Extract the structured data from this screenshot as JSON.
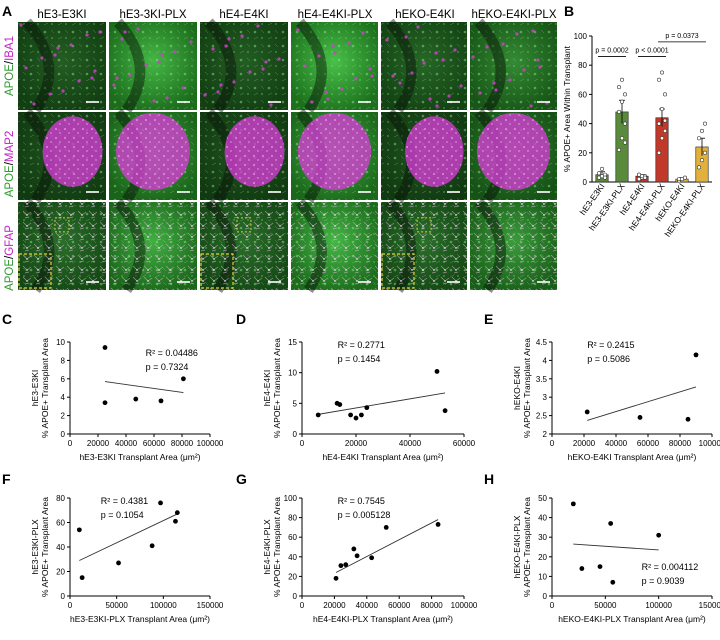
{
  "panel_letters": {
    "A": "A",
    "B": "B",
    "C": "C",
    "D": "D",
    "E": "E",
    "F": "F",
    "G": "G",
    "H": "H"
  },
  "micrograph": {
    "columns": [
      "hE3-E3KI",
      "hE3-3KI-PLX",
      "hE4-E4KI",
      "hE4-E4KI-PLX",
      "hEKO-E4KI",
      "hEKO-E4KI-PLX"
    ],
    "rows": [
      {
        "green": "APOE",
        "sep": "/",
        "magenta": "IBA1"
      },
      {
        "green": "APOE",
        "sep": "/",
        "magenta": "MAP2"
      },
      {
        "green": "APOE",
        "sep": "/",
        "magenta": "GFAP"
      }
    ],
    "colors": {
      "green": "#3cc03c",
      "magenta": "#d23cd2",
      "dark": "#0c1f0c",
      "inset": "#e6d23a",
      "scalebar": "#ffffff"
    }
  },
  "chart_data": [
    {
      "id": "B",
      "type": "bar",
      "categories": [
        "hE3-E3KI",
        "hE3-E3KI-PLX",
        "hE4-E4KI",
        "hE4-E4KI-PLX",
        "hEKO-E4KI",
        "hEKO-E4KI-PLX"
      ],
      "values": [
        5,
        48,
        4,
        44,
        2,
        24
      ],
      "errors": [
        2,
        8,
        1,
        6,
        1,
        6
      ],
      "colors": [
        "#5a8a3c",
        "#5a8a3c",
        "#c0392b",
        "#c0392b",
        "#e2b13c",
        "#e2b13c"
      ],
      "points": [
        [
          3,
          4,
          5,
          6,
          9,
          3
        ],
        [
          22,
          30,
          40,
          48,
          55,
          60,
          65,
          70,
          27
        ],
        [
          2,
          3,
          4,
          5,
          4,
          3,
          5
        ],
        [
          20,
          30,
          35,
          40,
          50,
          60,
          70,
          75,
          42
        ],
        [
          1,
          2,
          3,
          2
        ],
        [
          10,
          15,
          20,
          30,
          35,
          40
        ]
      ],
      "ylabel": "% APOE+ Area Within Transplant",
      "ylim": [
        0,
        100
      ],
      "yticks": [
        0,
        20,
        40,
        60,
        80,
        100
      ],
      "annotations": [
        {
          "text": "p = 0.0002",
          "from": 0,
          "to": 1,
          "y": 86
        },
        {
          "text": "p < 0.0001",
          "from": 2,
          "to": 3,
          "y": 86
        },
        {
          "text": "p = 0.0373",
          "from": 3,
          "to": 5,
          "y": 96
        }
      ]
    },
    {
      "id": "C",
      "type": "scatter",
      "points": [
        [
          25000,
          9.4
        ],
        [
          25000,
          3.4
        ],
        [
          47000,
          3.8
        ],
        [
          65000,
          3.6
        ],
        [
          81000,
          6.0
        ]
      ],
      "fit": [
        [
          25000,
          5.7
        ],
        [
          81000,
          4.5
        ]
      ],
      "xlim": [
        0,
        100000
      ],
      "xticks": [
        0,
        20000,
        40000,
        60000,
        80000,
        100000
      ],
      "ylim": [
        0,
        10
      ],
      "yticks": [
        0,
        2,
        4,
        6,
        8,
        10
      ],
      "ylabel1": "hE3-E3KI",
      "ylabel2": "% APOE+ Transplant Area",
      "xlabel": "hE3-E3KI Transplant Area (μm²)",
      "r2": "R² = 0.04486",
      "p": "p = 0.7324",
      "stats_pos": "top-right"
    },
    {
      "id": "D",
      "type": "scatter",
      "points": [
        [
          6000,
          3.1
        ],
        [
          13000,
          5.0
        ],
        [
          14000,
          4.8
        ],
        [
          18000,
          3.1
        ],
        [
          20000,
          2.6
        ],
        [
          22000,
          3.1
        ],
        [
          24000,
          4.3
        ],
        [
          50000,
          10.2
        ],
        [
          53000,
          3.8
        ]
      ],
      "fit": [
        [
          6000,
          3.2
        ],
        [
          53000,
          6.7
        ]
      ],
      "xlim": [
        0,
        60000
      ],
      "xticks": [
        0,
        20000,
        40000,
        60000
      ],
      "ylim": [
        0,
        15
      ],
      "yticks": [
        0,
        5,
        10,
        15
      ],
      "ylabel1": "hE4-E4KI",
      "ylabel2": "% APOE+ Transplant Area",
      "xlabel": "hE4-E4KI Transplant Area (μm²)",
      "r2": "R² = 0.2771",
      "p": "p = 0.1454",
      "stats_pos": "top-left"
    },
    {
      "id": "E",
      "type": "scatter",
      "points": [
        [
          22000,
          2.6
        ],
        [
          55000,
          2.45
        ],
        [
          85000,
          2.4
        ],
        [
          90000,
          4.15
        ]
      ],
      "fit": [
        [
          22000,
          2.37
        ],
        [
          90000,
          3.28
        ]
      ],
      "xlim": [
        0,
        100000
      ],
      "xticks": [
        0,
        20000,
        40000,
        60000,
        80000,
        100000
      ],
      "ylim": [
        2.0,
        4.5
      ],
      "yticks": [
        2.0,
        2.5,
        3.0,
        3.5,
        4.0,
        4.5
      ],
      "ylabel1": "hEKO-E4KI",
      "ylabel2": "% APOE+ Transplant Area",
      "xlabel": "hEKO-E4KI Transplant Area (μm²)",
      "r2": "R² = 0.2415",
      "p": "p = 0.5086",
      "stats_pos": "top-left"
    },
    {
      "id": "F",
      "type": "scatter",
      "points": [
        [
          10000,
          54
        ],
        [
          13000,
          15
        ],
        [
          52000,
          27
        ],
        [
          88000,
          41
        ],
        [
          97000,
          76
        ],
        [
          113000,
          61
        ],
        [
          115000,
          68
        ]
      ],
      "fit": [
        [
          10000,
          29
        ],
        [
          115000,
          67
        ]
      ],
      "xlim": [
        0,
        150000
      ],
      "xticks": [
        0,
        50000,
        100000,
        150000
      ],
      "ylim": [
        0,
        80
      ],
      "yticks": [
        0,
        20,
        40,
        60,
        80
      ],
      "ylabel1": "hE3-E3KI-PLX",
      "ylabel2": "% APOE+ Transplant Area",
      "xlabel": "hE3-E3KI-PLX Transplant Area (μm²)",
      "r2": "R² = 0.4381",
      "p": "p = 0.1054",
      "stats_pos": "top-left"
    },
    {
      "id": "G",
      "type": "scatter",
      "points": [
        [
          21000,
          18
        ],
        [
          24000,
          31
        ],
        [
          27000,
          32
        ],
        [
          32000,
          48
        ],
        [
          34000,
          41
        ],
        [
          43000,
          39
        ],
        [
          52000,
          70
        ],
        [
          84000,
          73
        ]
      ],
      "fit": [
        [
          21000,
          24
        ],
        [
          84000,
          78
        ]
      ],
      "xlim": [
        0,
        100000
      ],
      "xticks": [
        0,
        20000,
        40000,
        60000,
        80000,
        100000
      ],
      "ylim": [
        0,
        100
      ],
      "yticks": [
        0,
        20,
        40,
        60,
        80,
        100
      ],
      "ylabel1": "hE4-E4KI-PLX",
      "ylabel2": "% APOE+ Transplant Area",
      "xlabel": "hE4-E4KI-PLX Transplant Area (μm²)",
      "r2": "R² = 0.7545",
      "p": "p = 0.005128",
      "stats_pos": "top-left"
    },
    {
      "id": "H",
      "type": "scatter",
      "points": [
        [
          20000,
          47
        ],
        [
          28000,
          14
        ],
        [
          45000,
          15
        ],
        [
          55000,
          37
        ],
        [
          57000,
          7
        ],
        [
          100000,
          31
        ]
      ],
      "fit": [
        [
          20000,
          26.5
        ],
        [
          100000,
          23.5
        ]
      ],
      "xlim": [
        0,
        150000
      ],
      "xticks": [
        0,
        50000,
        100000,
        150000
      ],
      "ylim": [
        0,
        50
      ],
      "yticks": [
        0,
        10,
        20,
        30,
        40,
        50
      ],
      "ylabel1": "hEKO-E4KI-PLX",
      "ylabel2": "% APOE+ Transplant Area",
      "xlabel": "hEKO-E4KI-PLX Transplant Area (μm²)",
      "r2": "R² = 0.004112",
      "p": "p = 0.9039",
      "stats_pos": "bottom-right"
    }
  ]
}
